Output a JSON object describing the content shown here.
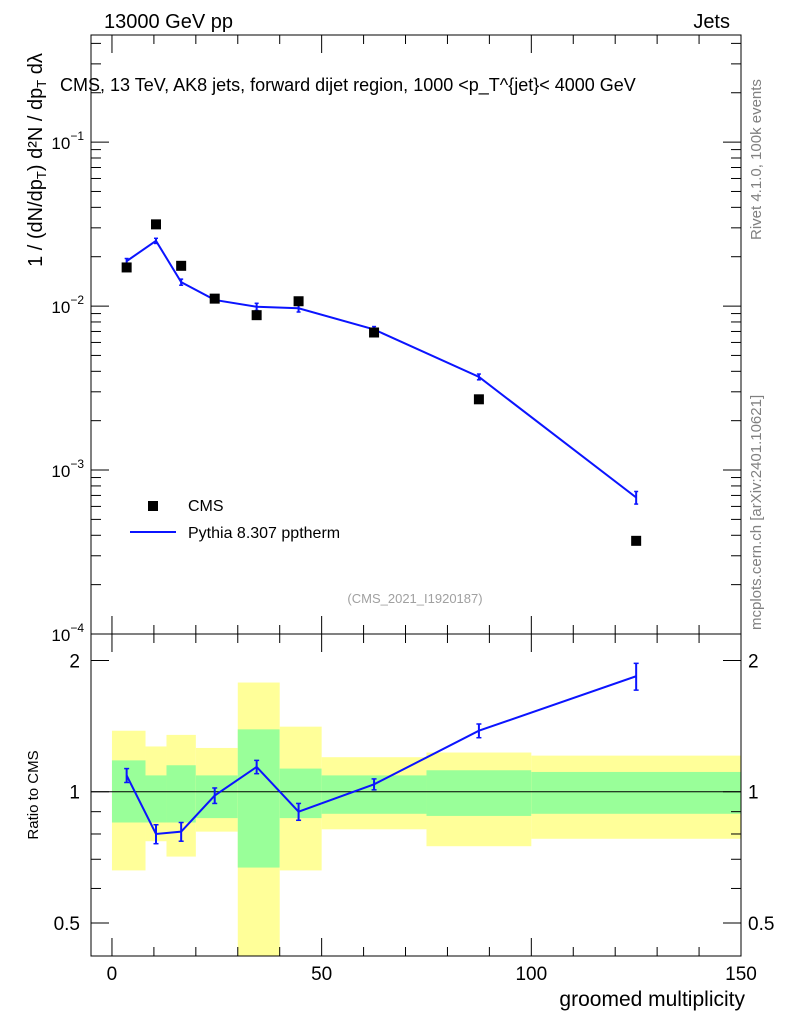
{
  "header": {
    "left": "13000 GeV pp",
    "right": "Jets"
  },
  "side_labels": {
    "rivet": "Rivet 4.1.0,  100k events",
    "source": "mcplots.cern.ch [arXiv:2401.10621]"
  },
  "colors": {
    "data_marker": "#000000",
    "mc_line": "#0b14ff",
    "band_inner": "#99ff99",
    "band_outer": "#ffff99"
  },
  "chart_data": [
    {
      "type": "scatter",
      "panel": "main",
      "title": "CMS, 13 TeV, AK8 jets, forward dijet region, 1000 <p_T^{jet}< 4000 GeV",
      "ylabel": "1/(dN/dp_T) d²N/(dp_T dλ)",
      "yscale": "log",
      "ylim": [
        0.0001,
        0.45
      ],
      "xlim": [
        -5,
        150
      ],
      "yticks": [
        {
          "value": 0.1,
          "label": "10",
          "exp": "−1"
        },
        {
          "value": 0.01,
          "label": "10",
          "exp": "−2"
        },
        {
          "value": 0.001,
          "label": "10",
          "exp": "−3"
        },
        {
          "value": 0.0001,
          "label": "10",
          "exp": "−4"
        }
      ],
      "watermark": "(CMS_2021_I1920187)",
      "legend": {
        "position": "bottom-left",
        "entries": [
          "CMS",
          "Pythia 8.307 pptherm"
        ]
      },
      "series": [
        {
          "name": "CMS",
          "style": "markers",
          "x": [
            3.5,
            10.5,
            16.5,
            24.5,
            34.5,
            44.5,
            62.5,
            87.5,
            125
          ],
          "y": [
            0.0172,
            0.0315,
            0.0176,
            0.0111,
            0.0088,
            0.0107,
            0.0069,
            0.0027,
            0.00037
          ]
        },
        {
          "name": "Pythia 8.307 pptherm",
          "style": "line",
          "x": [
            3.5,
            10.5,
            16.5,
            24.5,
            34.5,
            44.5,
            62.5,
            87.5,
            125
          ],
          "y": [
            0.0188,
            0.025,
            0.014,
            0.0109,
            0.0099,
            0.0097,
            0.0072,
            0.0037,
            0.00068
          ],
          "err": [
            0.0007,
            0.0009,
            0.0006,
            0.0004,
            0.0005,
            0.0005,
            0.0003,
            0.00015,
            6e-05
          ]
        }
      ]
    },
    {
      "type": "line",
      "panel": "ratio",
      "ylabel": "Ratio to CMS",
      "xlabel": "groomed multiplicity",
      "ylim": [
        0.42,
        2.3
      ],
      "xlim": [
        -5,
        150
      ],
      "xticks": [
        0,
        50,
        100,
        150
      ],
      "yticks": [
        0.5,
        1,
        2
      ],
      "reference_line": 1,
      "bands": [
        {
          "x_low": 0,
          "x_high": 8,
          "inner": [
            0.85,
            1.18
          ],
          "outer": [
            0.66,
            1.38
          ]
        },
        {
          "x_low": 8,
          "x_high": 13,
          "inner": [
            0.85,
            1.09
          ],
          "outer": [
            0.77,
            1.27
          ]
        },
        {
          "x_low": 13,
          "x_high": 20,
          "inner": [
            0.85,
            1.15
          ],
          "outer": [
            0.71,
            1.35
          ]
        },
        {
          "x_low": 20,
          "x_high": 30,
          "inner": [
            0.87,
            1.09
          ],
          "outer": [
            0.81,
            1.26
          ]
        },
        {
          "x_low": 30,
          "x_high": 40,
          "inner": [
            0.67,
            1.39
          ],
          "outer": [
            0.42,
            1.78
          ]
        },
        {
          "x_low": 40,
          "x_high": 50,
          "inner": [
            0.87,
            1.13
          ],
          "outer": [
            0.66,
            1.41
          ]
        },
        {
          "x_low": 50,
          "x_high": 75,
          "inner": [
            0.89,
            1.09
          ],
          "outer": [
            0.82,
            1.2
          ]
        },
        {
          "x_low": 75,
          "x_high": 100,
          "inner": [
            0.88,
            1.12
          ],
          "outer": [
            0.75,
            1.23
          ]
        },
        {
          "x_low": 100,
          "x_high": 150,
          "inner": [
            0.89,
            1.11
          ],
          "outer": [
            0.78,
            1.21
          ]
        }
      ],
      "series": [
        {
          "name": "Pythia 8.307 pptherm / CMS",
          "x": [
            3.5,
            10.5,
            16.5,
            24.5,
            34.5,
            44.5,
            62.5,
            87.5,
            125
          ],
          "y": [
            1.09,
            0.8,
            0.81,
            0.98,
            1.14,
            0.9,
            1.04,
            1.38,
            1.84
          ],
          "err": [
            0.04,
            0.04,
            0.04,
            0.04,
            0.04,
            0.04,
            0.03,
            0.05,
            0.13
          ]
        }
      ]
    }
  ]
}
